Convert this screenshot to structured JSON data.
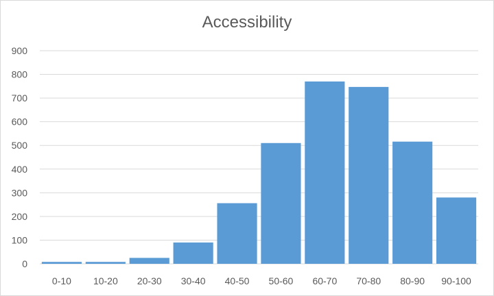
{
  "chart_data": {
    "type": "bar",
    "title": "Accessibility",
    "xlabel": "",
    "ylabel": "",
    "categories": [
      "0-10",
      "10-20",
      "20-30",
      "30-40",
      "40-50",
      "50-60",
      "60-70",
      "70-80",
      "80-90",
      "90-100"
    ],
    "values": [
      8,
      8,
      25,
      90,
      256,
      510,
      770,
      747,
      516,
      280
    ],
    "ylim": [
      0,
      900
    ],
    "yticks": [
      0,
      100,
      200,
      300,
      400,
      500,
      600,
      700,
      800,
      900
    ],
    "grid": true,
    "legend": "none",
    "bar_color": "#5b9bd5"
  }
}
